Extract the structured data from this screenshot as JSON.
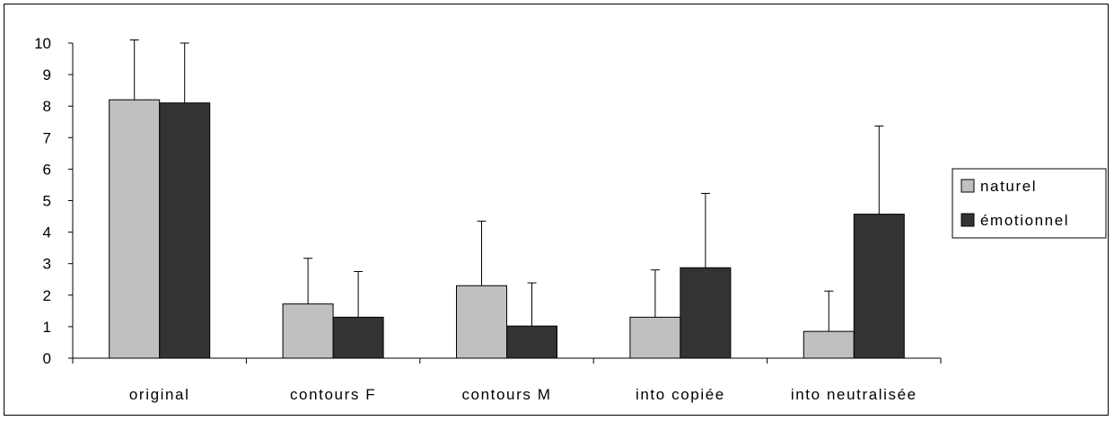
{
  "chart_data": {
    "type": "bar",
    "categories": [
      "original",
      "contours F",
      "contours M",
      "into copiée",
      "into neutralisée"
    ],
    "series": [
      {
        "name": "naturel",
        "color": "#c0c0c0",
        "values": [
          8.2,
          1.72,
          2.3,
          1.3,
          0.85
        ],
        "errors": [
          1.9,
          1.45,
          2.05,
          1.5,
          1.28
        ]
      },
      {
        "name": "émotionnel",
        "color": "#333333",
        "values": [
          8.1,
          1.3,
          1.02,
          2.87,
          4.57
        ],
        "errors": [
          1.9,
          1.45,
          1.37,
          2.36,
          2.8
        ]
      }
    ],
    "ylim": [
      0,
      10
    ],
    "yticks": [
      0,
      1,
      2,
      3,
      4,
      5,
      6,
      7,
      8,
      9,
      10
    ],
    "xlabel": "",
    "ylabel": "",
    "title": "",
    "grid": false,
    "legend_position": "right"
  }
}
